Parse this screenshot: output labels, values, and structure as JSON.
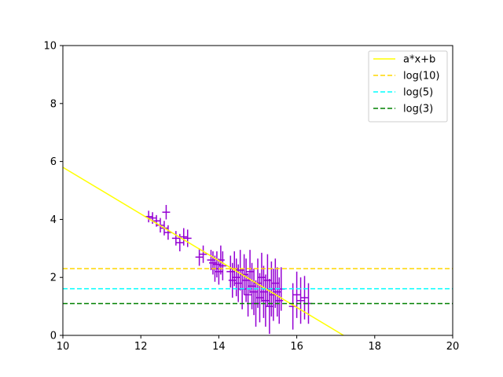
{
  "chart_data": {
    "type": "scatter",
    "title": "",
    "xlabel": "",
    "ylabel": "",
    "xlim": [
      10,
      20
    ],
    "ylim": [
      0,
      10
    ],
    "xticks": [
      "10",
      "12",
      "14",
      "16",
      "18",
      "20"
    ],
    "yticks": [
      "0",
      "2",
      "4",
      "6",
      "8",
      "10"
    ],
    "grid": false,
    "legend_position": "top-right",
    "series": [
      {
        "name": "a*x+b",
        "kind": "line",
        "style": "solid",
        "color": "#ffff00",
        "x": [
          10.0,
          17.2
        ],
        "y": [
          5.8,
          0.0
        ]
      },
      {
        "name": "log(10)",
        "kind": "hline",
        "style": "dashed",
        "color": "#ffd700",
        "y": 2.303
      },
      {
        "name": "log(5)",
        "kind": "hline",
        "style": "dashed",
        "color": "#00ffff",
        "y": 1.609
      },
      {
        "name": "log(3)",
        "kind": "hline",
        "style": "dashed",
        "color": "#008000",
        "y": 1.099
      },
      {
        "kind": "errorbar",
        "color": "#9400d3",
        "x": [
          12.2,
          12.3,
          12.4,
          12.5,
          12.6,
          12.65,
          12.7,
          12.9,
          13.0,
          13.1,
          13.2,
          13.5,
          13.6,
          13.8,
          13.85,
          13.9,
          13.95,
          14.0,
          14.05,
          14.1,
          14.3,
          14.35,
          14.4,
          14.45,
          14.5,
          14.55,
          14.6,
          14.65,
          14.7,
          14.75,
          14.8,
          14.85,
          14.9,
          14.95,
          15.0,
          15.05,
          15.1,
          15.15,
          15.2,
          15.25,
          15.3,
          15.35,
          15.4,
          15.45,
          15.5,
          15.55,
          15.6,
          15.9,
          16.0,
          16.1,
          16.2,
          16.3
        ],
        "y": [
          4.1,
          4.05,
          3.95,
          3.8,
          3.7,
          4.25,
          3.55,
          3.35,
          3.2,
          3.4,
          3.35,
          2.7,
          2.8,
          2.6,
          2.5,
          2.3,
          2.45,
          2.2,
          2.6,
          2.4,
          2.2,
          1.9,
          2.3,
          2.0,
          1.8,
          2.25,
          1.6,
          2.1,
          1.9,
          1.4,
          2.2,
          1.7,
          1.5,
          1.1,
          1.8,
          1.3,
          2.0,
          1.5,
          1.2,
          1.9,
          1.0,
          1.6,
          1.4,
          1.8,
          1.5,
          1.2,
          1.6,
          1.0,
          1.4,
          1.2,
          1.3,
          1.1
        ],
        "yerr": [
          0.2,
          0.2,
          0.2,
          0.25,
          0.25,
          0.25,
          0.25,
          0.25,
          0.3,
          0.3,
          0.3,
          0.3,
          0.3,
          0.35,
          0.4,
          0.45,
          0.45,
          0.45,
          0.5,
          0.5,
          0.55,
          0.6,
          0.6,
          0.65,
          0.65,
          0.7,
          0.7,
          0.7,
          0.75,
          0.75,
          0.75,
          0.8,
          0.8,
          0.8,
          0.85,
          0.85,
          0.85,
          0.9,
          0.9,
          0.9,
          0.95,
          0.95,
          0.9,
          0.85,
          0.85,
          0.8,
          0.75,
          0.8,
          0.8,
          0.8,
          0.75,
          0.7
        ],
        "xerr": [
          0.1,
          0.1,
          0.1,
          0.1,
          0.1,
          0.1,
          0.1,
          0.1,
          0.1,
          0.1,
          0.1,
          0.1,
          0.1,
          0.1,
          0.1,
          0.1,
          0.1,
          0.1,
          0.1,
          0.1,
          0.1,
          0.1,
          0.1,
          0.1,
          0.1,
          0.1,
          0.1,
          0.1,
          0.1,
          0.1,
          0.1,
          0.1,
          0.1,
          0.1,
          0.1,
          0.1,
          0.1,
          0.1,
          0.1,
          0.1,
          0.1,
          0.1,
          0.1,
          0.1,
          0.1,
          0.1,
          0.1,
          0.1,
          0.1,
          0.1,
          0.1,
          0.1
        ]
      }
    ]
  }
}
